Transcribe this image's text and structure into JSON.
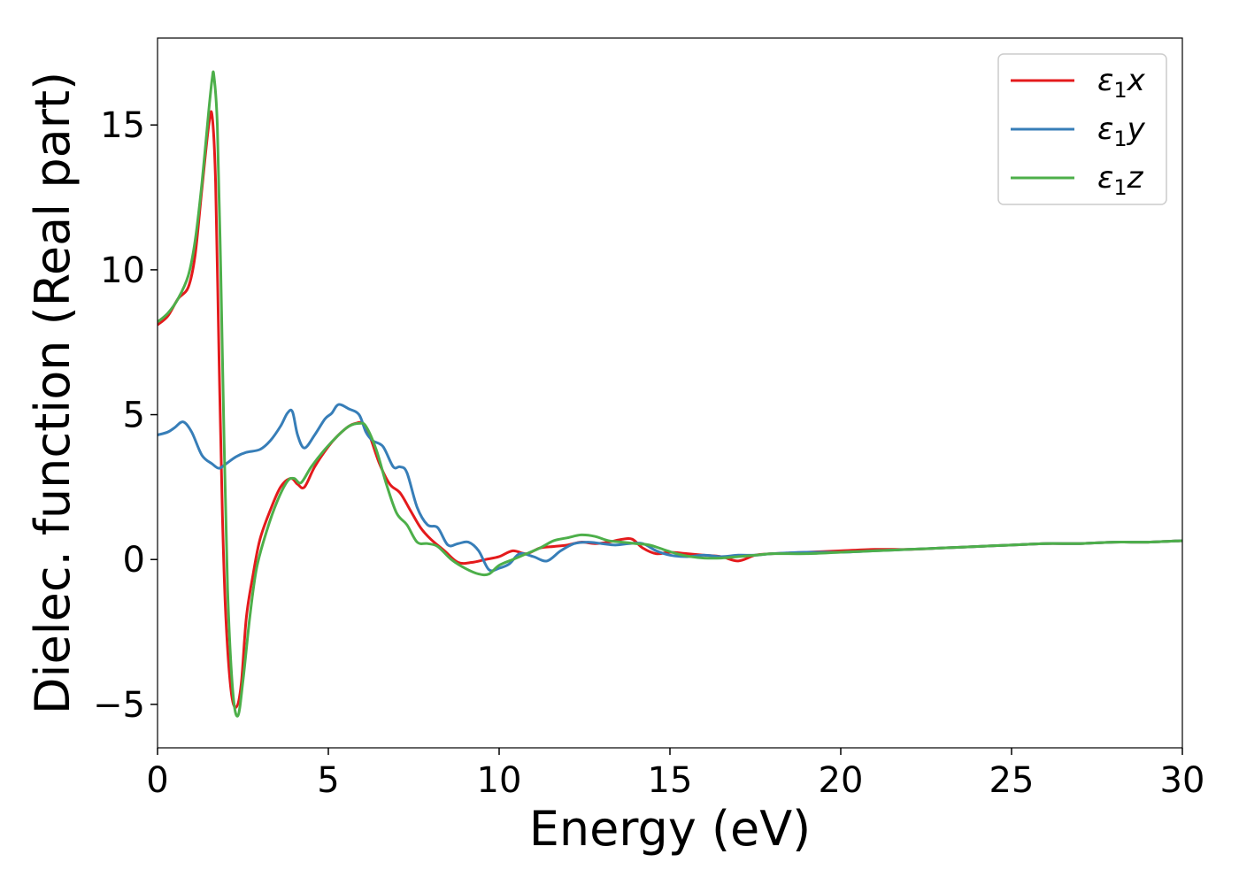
{
  "chart_data": {
    "type": "line",
    "title": "",
    "xlabel": "Energy (eV)",
    "ylabel": "Dielec. function (Real part)",
    "xlim": [
      0,
      30
    ],
    "ylim": [
      -6.5,
      18
    ],
    "xticks": [
      0,
      5,
      10,
      15,
      20,
      25,
      30
    ],
    "xtick_labels": [
      "0",
      "5",
      "10",
      "15",
      "20",
      "25",
      "30"
    ],
    "yticks": [
      -5,
      0,
      5,
      10,
      15
    ],
    "ytick_labels": [
      "−5",
      "0",
      "5",
      "10",
      "15"
    ],
    "grid": false,
    "legend_position": "top-right",
    "series": [
      {
        "name": "ε₁x",
        "legend_main": "ε",
        "legend_sub": "1",
        "legend_suffix": "x",
        "color": "#e41a1c",
        "x": [
          0,
          0.3,
          0.6,
          0.9,
          1.1,
          1.3,
          1.5,
          1.6,
          1.7,
          1.8,
          1.9,
          2.0,
          2.15,
          2.3,
          2.45,
          2.6,
          2.8,
          3.0,
          3.3,
          3.6,
          3.9,
          4.1,
          4.3,
          4.6,
          5.0,
          5.3,
          5.6,
          5.8,
          6.0,
          6.2,
          6.5,
          6.8,
          7.1,
          7.4,
          7.7,
          8.0,
          8.4,
          8.8,
          9.2,
          9.6,
          10.0,
          10.4,
          10.8,
          11.2,
          11.6,
          12.0,
          12.4,
          12.8,
          13.2,
          13.6,
          13.9,
          14.2,
          14.6,
          15.0,
          15.5,
          16.0,
          16.5,
          17.0,
          17.5,
          18.0,
          19.0,
          20.0,
          21.0,
          22.0,
          23.0,
          24.0,
          25.0,
          26.0,
          27.0,
          28.0,
          29.0,
          30.0
        ],
        "y": [
          8.1,
          8.4,
          9.0,
          9.4,
          10.5,
          12.8,
          15.0,
          15.3,
          13.0,
          7.0,
          1.5,
          -2.0,
          -4.5,
          -5.1,
          -4.3,
          -2.0,
          -0.5,
          0.7,
          1.7,
          2.5,
          2.8,
          2.6,
          2.5,
          3.2,
          3.9,
          4.3,
          4.6,
          4.7,
          4.7,
          4.3,
          3.3,
          2.6,
          2.3,
          1.7,
          1.1,
          0.7,
          0.3,
          -0.1,
          -0.1,
          0.0,
          0.1,
          0.3,
          0.2,
          0.4,
          0.45,
          0.5,
          0.6,
          0.55,
          0.6,
          0.7,
          0.7,
          0.4,
          0.2,
          0.25,
          0.2,
          0.15,
          0.1,
          -0.05,
          0.15,
          0.2,
          0.25,
          0.3,
          0.35,
          0.35,
          0.4,
          0.45,
          0.5,
          0.55,
          0.55,
          0.6,
          0.6,
          0.65
        ]
      },
      {
        "name": "ε₁y",
        "legend_main": "ε",
        "legend_sub": "1",
        "legend_suffix": "y",
        "color": "#377eb8",
        "x": [
          0,
          0.3,
          0.5,
          0.75,
          1.0,
          1.3,
          1.6,
          1.8,
          2.0,
          2.3,
          2.6,
          3.0,
          3.3,
          3.6,
          3.8,
          3.95,
          4.1,
          4.3,
          4.6,
          4.9,
          5.1,
          5.3,
          5.6,
          5.9,
          6.1,
          6.3,
          6.6,
          6.9,
          7.1,
          7.3,
          7.6,
          7.9,
          8.2,
          8.5,
          8.8,
          9.1,
          9.4,
          9.7,
          10.0,
          10.3,
          10.6,
          11.0,
          11.4,
          11.8,
          12.2,
          12.6,
          13.0,
          13.4,
          13.8,
          14.2,
          14.6,
          15.0,
          15.5,
          16.0,
          16.5,
          17.0,
          17.5,
          18.0,
          19.0,
          20.0,
          21.0,
          22.0,
          23.0,
          24.0,
          25.0,
          26.0,
          27.0,
          28.0,
          29.0,
          30.0
        ],
        "y": [
          4.3,
          4.4,
          4.55,
          4.75,
          4.4,
          3.6,
          3.3,
          3.15,
          3.3,
          3.55,
          3.7,
          3.8,
          4.1,
          4.6,
          5.05,
          5.1,
          4.3,
          3.85,
          4.3,
          4.85,
          5.05,
          5.35,
          5.2,
          5.0,
          4.4,
          4.1,
          3.9,
          3.2,
          3.2,
          3.0,
          1.8,
          1.2,
          1.1,
          0.5,
          0.55,
          0.6,
          0.3,
          -0.35,
          -0.3,
          -0.15,
          0.2,
          0.1,
          -0.05,
          0.3,
          0.55,
          0.6,
          0.55,
          0.5,
          0.55,
          0.55,
          0.3,
          0.15,
          0.1,
          0.15,
          0.1,
          0.15,
          0.15,
          0.2,
          0.25,
          0.25,
          0.3,
          0.35,
          0.4,
          0.45,
          0.5,
          0.55,
          0.55,
          0.6,
          0.6,
          0.65
        ]
      },
      {
        "name": "ε₁z",
        "legend_main": "ε",
        "legend_sub": "1",
        "legend_suffix": "z",
        "color": "#4daf4a",
        "x": [
          0,
          0.3,
          0.6,
          0.9,
          1.1,
          1.3,
          1.5,
          1.6,
          1.65,
          1.75,
          1.85,
          1.95,
          2.05,
          2.2,
          2.35,
          2.5,
          2.7,
          2.9,
          3.2,
          3.5,
          3.8,
          4.0,
          4.2,
          4.5,
          4.9,
          5.3,
          5.6,
          5.9,
          6.1,
          6.4,
          6.7,
          7.0,
          7.3,
          7.6,
          7.9,
          8.2,
          8.6,
          9.0,
          9.4,
          9.7,
          10.0,
          10.4,
          10.8,
          11.2,
          11.6,
          12.0,
          12.4,
          12.8,
          13.2,
          13.6,
          14.0,
          14.4,
          14.8,
          15.2,
          15.6,
          16.0,
          16.5,
          17.0,
          17.5,
          18.0,
          19.0,
          20.0,
          21.0,
          22.0,
          23.0,
          24.0,
          25.0,
          26.0,
          27.0,
          28.0,
          29.0,
          30.0
        ],
        "y": [
          8.2,
          8.5,
          9.0,
          9.8,
          11.0,
          13.0,
          15.5,
          16.6,
          16.7,
          15.0,
          10.0,
          4.0,
          -1.0,
          -4.5,
          -5.4,
          -4.2,
          -2.0,
          -0.3,
          1.0,
          2.0,
          2.7,
          2.8,
          2.65,
          3.2,
          3.8,
          4.3,
          4.6,
          4.7,
          4.6,
          3.8,
          2.6,
          1.6,
          1.2,
          0.6,
          0.55,
          0.45,
          0.0,
          -0.3,
          -0.5,
          -0.5,
          -0.2,
          0.0,
          0.2,
          0.4,
          0.65,
          0.75,
          0.85,
          0.8,
          0.65,
          0.6,
          0.55,
          0.5,
          0.35,
          0.2,
          0.1,
          0.05,
          0.05,
          0.1,
          0.15,
          0.2,
          0.2,
          0.25,
          0.3,
          0.35,
          0.4,
          0.45,
          0.5,
          0.55,
          0.55,
          0.6,
          0.6,
          0.65
        ]
      }
    ]
  }
}
